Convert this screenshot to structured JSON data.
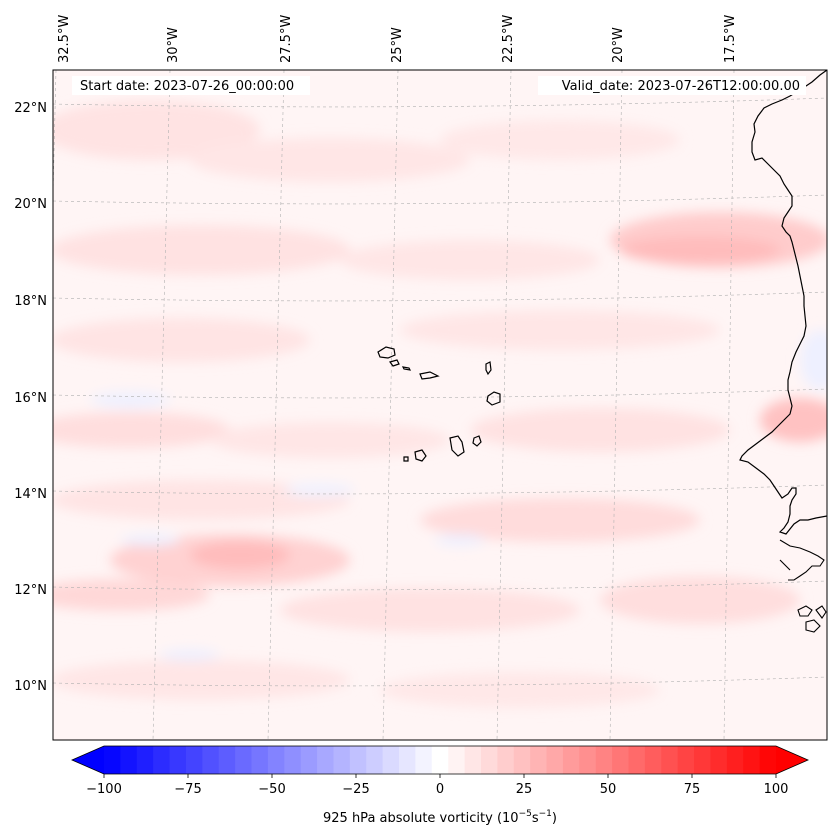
{
  "map": {
    "lon_labels": [
      "32.5°W",
      "30°W",
      "27.5°W",
      "25°W",
      "22.5°W",
      "20°W",
      "17.5°W"
    ],
    "lat_labels": [
      "22°N",
      "20°N",
      "18°N",
      "16°N",
      "14°N",
      "12°N",
      "10°N"
    ],
    "start_date": "Start date: 2023-07-26_00:00:00",
    "valid_date": "Valid_date: 2023-07-26T12:00:00.00"
  },
  "colorbar": {
    "ticks": [
      "−100",
      "−75",
      "−50",
      "−25",
      "0",
      "25",
      "50",
      "75",
      "100"
    ],
    "label_prefix": "925 hPa absolute vorticity (10",
    "label_exp1": "−5",
    "label_mid": "s",
    "label_exp2": "−1",
    "label_suffix": ")",
    "min_value": -100,
    "max_value": 100,
    "levels": 41,
    "min_color": "#0000ff",
    "mid_color": "#ffffff",
    "max_color": "#ff0000"
  },
  "colors": {
    "coastline": "#000000",
    "background_positive": "#fff4f4",
    "gridline": "#b0b0b0"
  }
}
